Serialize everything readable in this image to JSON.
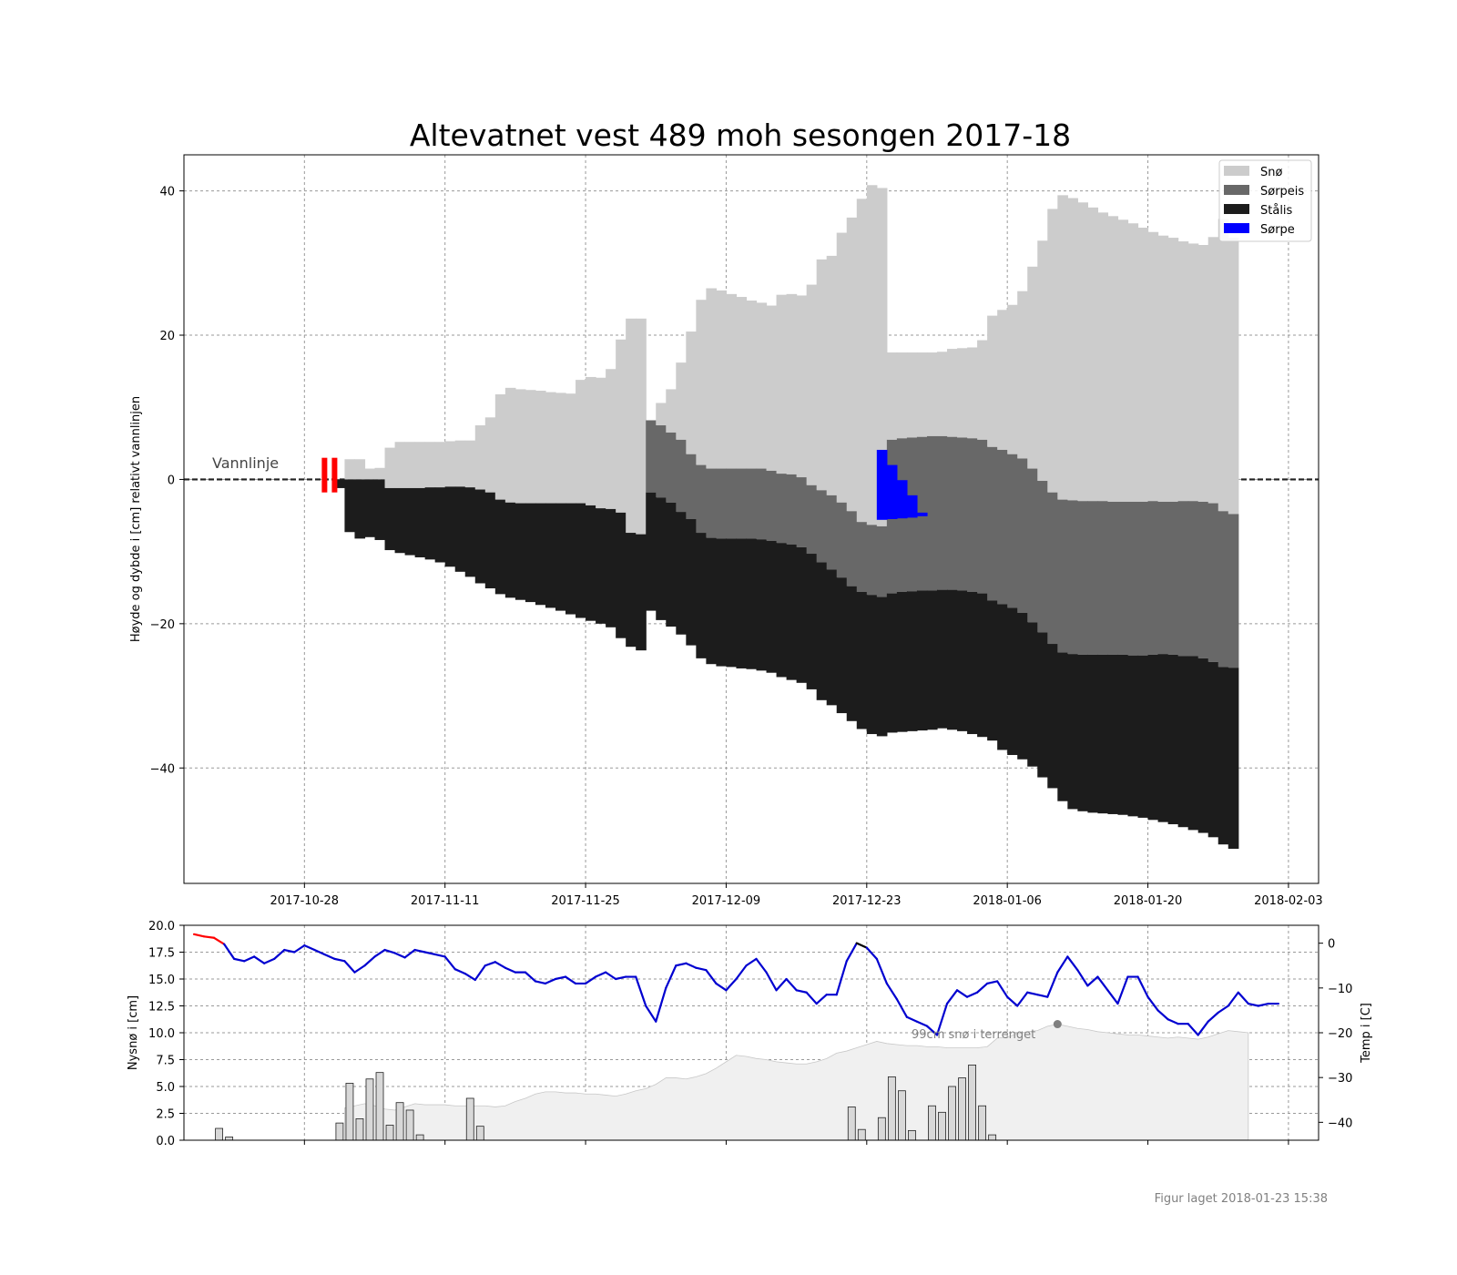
{
  "figure": {
    "title": "Altevatnet vest 489 moh sesongen 2017-18",
    "footer": "Figur laget 2018-01-23 15:38",
    "waterline_label": "Vannlinje",
    "terrain_snow_label": "99cm snø i terrenget"
  },
  "colors": {
    "snow": "#cccccc",
    "slush_ice": "#686868",
    "black_ice": "#1c1c1c",
    "slush": "#0000ff",
    "temp_line": "#0000d0",
    "temp_warm": "#ff0000",
    "temp_mid": "#000000",
    "terrain_fill": "#f0f0f0",
    "bar_fill": "#d8d8d8",
    "grid": "#9a9a9a",
    "marker": "#ff0000"
  },
  "chart_data": [
    {
      "type": "area",
      "name": "ice-profile",
      "ylabel": "Høyde og dybde i [cm] relativt vannlinjen",
      "xlim": [
        "2017-10-16",
        "2018-02-06"
      ],
      "ylim": [
        -56,
        45
      ],
      "x_ticks": [
        "2017-10-28",
        "2017-11-11",
        "2017-11-25",
        "2017-12-09",
        "2017-12-23",
        "2018-01-06",
        "2018-01-20",
        "2018-02-03"
      ],
      "y_ticks": [
        40,
        20,
        0,
        -20,
        -40
      ],
      "grid": true,
      "legend_position": "top-right",
      "legend": [
        {
          "label": "Snø",
          "color": "#cccccc"
        },
        {
          "label": "Sørpeis",
          "color": "#686868"
        },
        {
          "label": "Stålis",
          "color": "#1c1c1c"
        },
        {
          "label": "Sørpe",
          "color": "#0000ff"
        }
      ],
      "start_date": "2017-10-31",
      "day_step": 1,
      "snow_top": [
        0,
        2.8,
        2.8,
        1.5,
        1.6,
        4.4,
        5.2,
        5.2,
        5.2,
        5.2,
        5.2,
        5.3,
        5.4,
        5.4,
        7.5,
        8.6,
        11.8,
        12.7,
        12.5,
        12.4,
        12.3,
        12.1,
        12.0,
        11.9,
        13.8,
        14.2,
        14.1,
        15.3,
        19.4,
        22.3,
        22.3,
        8.0,
        10.6,
        12.5,
        16.2,
        20.5,
        24.9,
        26.5,
        26.2,
        25.7,
        25.3,
        24.8,
        24.5,
        24.1,
        25.6,
        25.7,
        25.5,
        27.0,
        30.5,
        31.0,
        34.2,
        36.3,
        38.9,
        40.8,
        40.4,
        17.6,
        17.6,
        17.6,
        17.6,
        17.6,
        17.7,
        18.1,
        18.2,
        18.3,
        19.3,
        22.7,
        23.5,
        24.2,
        26.1,
        29.5,
        33.1,
        37.5,
        39.4,
        39.0,
        38.4,
        37.7,
        37.0,
        36.5,
        36.0,
        35.5,
        34.9,
        34.3,
        33.8,
        33.5,
        33.0,
        32.7,
        32.5,
        33.6,
        36.1,
        33.5
      ],
      "slush_ice_top": [
        0,
        0,
        0,
        0,
        0,
        -1.2,
        -1.2,
        -1.2,
        -1.2,
        -1.1,
        -1.1,
        -1.0,
        -1.0,
        -1.1,
        -1.4,
        -1.8,
        -2.8,
        -3.2,
        -3.3,
        -3.3,
        -3.3,
        -3.3,
        -3.3,
        -3.3,
        -3.3,
        -3.6,
        -4.0,
        -4.1,
        -4.6,
        -7.4,
        -7.6,
        8.2,
        7.5,
        6.5,
        5.5,
        3.5,
        2.0,
        1.5,
        1.5,
        1.5,
        1.5,
        1.5,
        1.5,
        1.2,
        0.8,
        0.7,
        0.3,
        -0.8,
        -1.5,
        -2.2,
        -3.2,
        -4.4,
        -5.9,
        -6.3,
        -6.5,
        5.5,
        5.7,
        5.8,
        5.9,
        6.0,
        6.0,
        5.9,
        5.8,
        5.7,
        5.5,
        4.5,
        4.1,
        3.5,
        2.9,
        1.5,
        -0.2,
        -1.8,
        -2.8,
        -2.9,
        -3.0,
        -3.0,
        -3.0,
        -3.1,
        -3.1,
        -3.1,
        -3.1,
        -3.0,
        -3.1,
        -3.1,
        -3.0,
        -3.0,
        -3.1,
        -3.3,
        -4.4,
        -4.8
      ],
      "black_ice_top": [
        0,
        0,
        0,
        0,
        0,
        -1.2,
        -1.2,
        -1.2,
        -1.2,
        -1.1,
        -1.1,
        -1.0,
        -1.0,
        -1.1,
        -1.4,
        -1.8,
        -2.8,
        -3.2,
        -3.3,
        -3.3,
        -3.3,
        -3.3,
        -3.3,
        -3.3,
        -3.3,
        -3.6,
        -4.0,
        -4.1,
        -4.6,
        -7.4,
        -7.6,
        -1.8,
        -2.5,
        -3.2,
        -4.5,
        -5.5,
        -7.4,
        -8.1,
        -8.2,
        -8.2,
        -8.2,
        -8.2,
        -8.3,
        -8.5,
        -8.8,
        -9.0,
        -9.4,
        -10.3,
        -11.5,
        -12.5,
        -13.6,
        -14.8,
        -15.6,
        -16.0,
        -16.3,
        -15.8,
        -15.6,
        -15.5,
        -15.4,
        -15.4,
        -15.3,
        -15.3,
        -15.4,
        -15.6,
        -15.8,
        -16.8,
        -17.3,
        -17.8,
        -18.5,
        -19.8,
        -21.2,
        -22.8,
        -24.0,
        -24.2,
        -24.3,
        -24.3,
        -24.3,
        -24.3,
        -24.3,
        -24.4,
        -24.4,
        -24.3,
        -24.2,
        -24.3,
        -24.5,
        -24.5,
        -24.8,
        -25.3,
        -26.0,
        -26.1
      ],
      "black_ice_bottom": [
        -1.2,
        -7.3,
        -8.2,
        -8.0,
        -8.4,
        -9.8,
        -10.2,
        -10.5,
        -10.8,
        -11.1,
        -11.5,
        -12.1,
        -12.8,
        -13.5,
        -14.4,
        -15.1,
        -15.9,
        -16.4,
        -16.7,
        -17.0,
        -17.4,
        -17.8,
        -18.2,
        -18.7,
        -19.2,
        -19.6,
        -20.0,
        -20.5,
        -22.0,
        -23.2,
        -23.7,
        -18.2,
        -19.5,
        -20.4,
        -21.5,
        -23.0,
        -24.8,
        -25.6,
        -25.9,
        -26.0,
        -26.2,
        -26.3,
        -26.5,
        -26.8,
        -27.4,
        -27.8,
        -28.2,
        -29.1,
        -30.6,
        -31.3,
        -32.4,
        -33.5,
        -34.6,
        -35.3,
        -35.6,
        -35.1,
        -35.0,
        -34.9,
        -34.8,
        -34.7,
        -34.5,
        -34.7,
        -34.9,
        -35.3,
        -35.7,
        -36.2,
        -37.5,
        -38.2,
        -38.8,
        -39.8,
        -41.3,
        -42.8,
        -44.6,
        -45.7,
        -46.0,
        -46.2,
        -46.3,
        -46.4,
        -46.5,
        -46.7,
        -46.9,
        -47.2,
        -47.5,
        -47.8,
        -48.2,
        -48.6,
        -49.0,
        -49.6,
        -50.6,
        -51.2
      ],
      "slush_layer": {
        "start_date": "2017-12-24",
        "top": [
          4.1,
          2.0,
          -0.1,
          -2.2,
          -4.6
        ],
        "bottom": [
          -5.6,
          -5.5,
          -5.4,
          -5.3,
          -5.1
        ]
      },
      "red_markers": [
        "2017-10-30",
        "2017-10-31"
      ]
    },
    {
      "type": "bar",
      "name": "weather",
      "ylabel": "Nysnø i [cm]",
      "y2label": "Temp i [C]",
      "ylim": [
        0,
        20
      ],
      "y2lim": [
        -44,
        4
      ],
      "y_ticks": [
        "0.0",
        "2.5",
        "5.0",
        "7.5",
        "10.0",
        "12.5",
        "15.0",
        "17.5",
        "20.0"
      ],
      "y2_ticks": [
        0,
        -10,
        -20,
        -30,
        -40
      ],
      "start_date": "2017-10-17",
      "day_step": 1,
      "new_snow": [
        0,
        0,
        1.1,
        0.3,
        0,
        0,
        0,
        0,
        0,
        0,
        0,
        0,
        0,
        0,
        1.6,
        5.3,
        2.0,
        5.7,
        6.3,
        1.4,
        3.5,
        2.8,
        0.5,
        0,
        0,
        0,
        0,
        3.9,
        1.3,
        0,
        0,
        0,
        0,
        0,
        0,
        0,
        0,
        0,
        0,
        0,
        0,
        0,
        0,
        0,
        0,
        0,
        0,
        0,
        0,
        0,
        0,
        0,
        0,
        0,
        0,
        0,
        0,
        0,
        0,
        0,
        0,
        0,
        0,
        0,
        0,
        3.1,
        1.0,
        0,
        2.1,
        5.9,
        4.6,
        0.9,
        0,
        3.2,
        2.6,
        5.0,
        5.8,
        7.0,
        3.2,
        0.5,
        0,
        0,
        0,
        0,
        0,
        0,
        0,
        0,
        0,
        0,
        0,
        0,
        0,
        0,
        0,
        0,
        0,
        0,
        0
      ],
      "temperature": [
        2,
        1.5,
        1.2,
        -0.2,
        -3.5,
        -4,
        -3,
        -4.5,
        -3.5,
        -1.5,
        -2,
        -0.5,
        -1.5,
        -2.5,
        -3.5,
        -4,
        -6.5,
        -5,
        -3,
        -1.5,
        -2.2,
        -3.2,
        -1.5,
        -2,
        -2.5,
        -3,
        -5.8,
        -6.8,
        -8.2,
        -5,
        -4.2,
        -5.5,
        -6.5,
        -6.5,
        -8.5,
        -9,
        -8,
        -7.5,
        -9,
        -9,
        -7.5,
        -6.5,
        -8,
        -7.5,
        -7.5,
        -14,
        -17.5,
        -10,
        -5,
        -4.5,
        -5.5,
        -6,
        -9,
        -10.5,
        -8,
        -5,
        -3.5,
        -6.5,
        -10.5,
        -8,
        -10.5,
        -11,
        -13.5,
        -11.5,
        -11.5,
        -4,
        0,
        -1,
        -3.5,
        -9,
        -12.5,
        -16.5,
        -17.5,
        -18.5,
        -20.5,
        -13.5,
        -10.5,
        -12,
        -11,
        -9,
        -8.5,
        -12,
        -14,
        -11,
        -11.5,
        -12,
        -6.5,
        -3,
        -6,
        -9.5,
        -7.5,
        -10.5,
        -13.5,
        -7.5,
        -7.5,
        -12,
        -15,
        -17,
        -18,
        -18,
        -20.5,
        -17.5,
        -15.5,
        -14,
        -11,
        -13.5,
        -14,
        -13.5,
        -13.5
      ],
      "terrain_snow": {
        "start_date": "2017-11-01",
        "values": [
          3.0,
          3.2,
          3.4,
          3.2,
          2.9,
          2.8,
          3.1,
          3.4,
          3.3,
          3.3,
          3.3,
          3.2,
          3.2,
          3.2,
          3.2,
          3.1,
          3.2,
          3.6,
          3.9,
          4.3,
          4.5,
          4.5,
          4.4,
          4.4,
          4.3,
          4.3,
          4.2,
          4.1,
          4.3,
          4.6,
          4.8,
          5.2,
          5.8,
          5.8,
          5.7,
          5.9,
          6.2,
          6.7,
          7.3,
          7.9,
          7.8,
          7.6,
          7.5,
          7.3,
          7.2,
          7.1,
          7.1,
          7.3,
          7.6,
          8.1,
          8.3,
          8.6,
          8.9,
          9.2,
          9.0,
          8.9,
          8.8,
          8.8,
          8.7,
          8.7,
          8.6,
          8.6,
          8.6,
          8.6,
          8.7,
          9.5,
          9.6,
          9.9,
          10.1,
          10.2,
          10.6,
          10.8,
          10.6,
          10.4,
          10.3,
          10.1,
          10.0,
          9.9,
          9.8,
          9.8,
          9.7,
          9.6,
          9.5,
          9.6,
          9.5,
          9.4,
          9.6,
          9.9,
          10.2,
          10.1,
          10.0
        ]
      }
    }
  ]
}
